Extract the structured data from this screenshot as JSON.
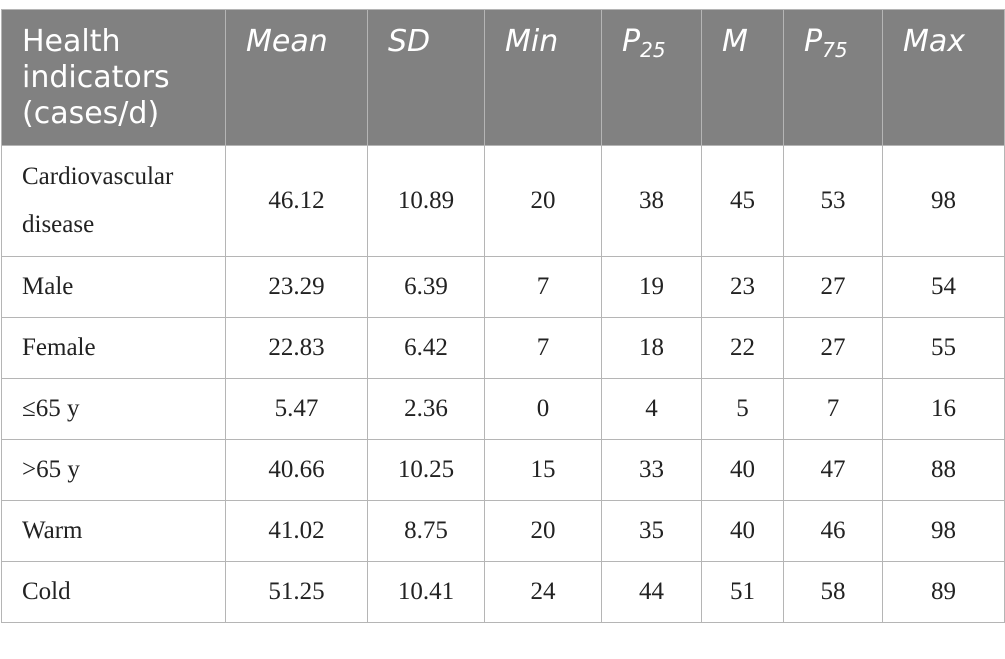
{
  "header": {
    "indicator": "Health indicators (cases/d)",
    "mean": "Mean",
    "sd": "SD",
    "min": "Min",
    "p25_base": "P",
    "p25_sub": "25",
    "median": "M",
    "p75_base": "P",
    "p75_sub": "75",
    "max": "Max"
  },
  "rows": [
    {
      "label": "Cardiovascular disease",
      "mean": "46.12",
      "sd": "10.89",
      "min": "20",
      "p25": "38",
      "m": "45",
      "p75": "53",
      "max": "98"
    },
    {
      "label": "Male",
      "mean": "23.29",
      "sd": "6.39",
      "min": "7",
      "p25": "19",
      "m": "23",
      "p75": "27",
      "max": "54"
    },
    {
      "label": "Female",
      "mean": "22.83",
      "sd": "6.42",
      "min": "7",
      "p25": "18",
      "m": "22",
      "p75": "27",
      "max": "55"
    },
    {
      "label": "≤65 y",
      "mean": "5.47",
      "sd": "2.36",
      "min": "0",
      "p25": "4",
      "m": "5",
      "p75": "7",
      "max": "16"
    },
    {
      "label": ">65 y",
      "mean": "40.66",
      "sd": "10.25",
      "min": "15",
      "p25": "33",
      "m": "40",
      "p75": "47",
      "max": "88"
    },
    {
      "label": "Warm",
      "mean": "41.02",
      "sd": "8.75",
      "min": "20",
      "p25": "35",
      "m": "40",
      "p75": "46",
      "max": "98"
    },
    {
      "label": "Cold",
      "mean": "51.25",
      "sd": "10.41",
      "min": "24",
      "p25": "44",
      "m": "51",
      "p75": "58",
      "max": "89"
    }
  ],
  "colors": {
    "header_bg": "#818181",
    "header_text": "#ffffff",
    "grid": "#b5b5b5"
  }
}
